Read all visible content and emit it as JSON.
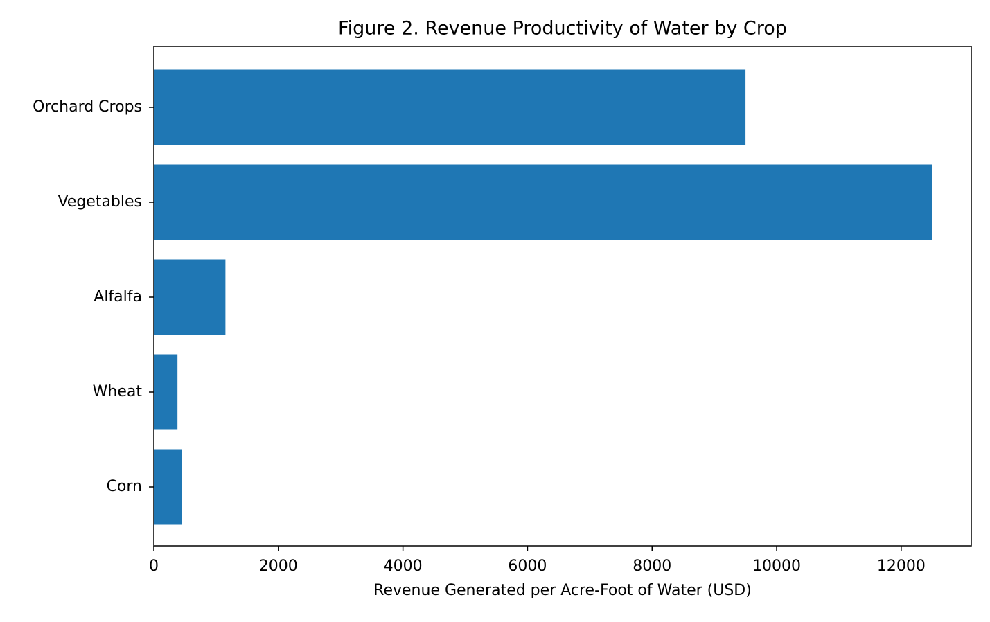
{
  "chart_data": {
    "type": "barh",
    "title": "Figure 2. Revenue Productivity of Water by Crop",
    "x_label": "Revenue Generated per Acre-Foot of Water (USD)",
    "categories": [
      "Orchard Crops",
      "Vegetables",
      "Alfalfa",
      "Wheat",
      "Corn"
    ],
    "values": [
      9500,
      12500,
      1150,
      380,
      450
    ],
    "color": "#1f77b4",
    "xlim": [
      0,
      13125
    ],
    "xticks": [
      0,
      2000,
      4000,
      6000,
      8000,
      10000,
      12000
    ]
  }
}
